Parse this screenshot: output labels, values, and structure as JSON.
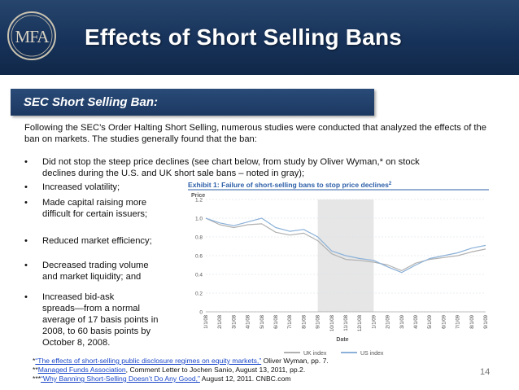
{
  "slide": {
    "title": "Effects of Short Selling Bans",
    "logo_text": "MFA",
    "section": "SEC Short Selling Ban:",
    "intro": "Following the SEC’s Order Halting Short Selling, numerous studies were conducted that analyzed the effects of the ban on markets.  The studies generally found that the ban:",
    "bullets": [
      {
        "marker": "•",
        "lines": [
          "Did not stop the steep price declines (see chart below, from study by Oliver Wyman,* on stock",
          "declines during the U.S. and UK short sale bans – noted in gray);"
        ]
      },
      {
        "marker": "•",
        "lines": [
          "Increased volatility;"
        ]
      },
      {
        "marker": "•",
        "lines": [
          "Made capital raising more",
          "difficult for certain issuers;"
        ]
      },
      {
        "marker": "•",
        "lines": [
          "Reduced market efficiency;"
        ]
      },
      {
        "marker": "•",
        "lines": [
          "Decreased trading volume",
          "and market liquidity; and"
        ]
      },
      {
        "marker": "•",
        "lines": [
          "Increased bid-ask",
          "spreads—from a normal",
          "average of 17 basis points in",
          "2008, to 60 basis points by",
          "October 8, 2008."
        ]
      }
    ],
    "footnotes": [
      {
        "prefix": "*",
        "link": "“The effects of short-selling public disclosure regimes on equity markets,”",
        "rest": " Oliver Wyman, pp. 7."
      },
      {
        "prefix": "**",
        "link": "Managed Funds Association",
        "rest": ", Comment Letter to Jochen Sanio, August 13, 2011, pp.2."
      },
      {
        "prefix": "***",
        "link": "“Why Banning Short-Selling Doesn’t Do Any Good,”",
        "rest": " August 12, 2011. CNBC.com"
      }
    ],
    "page_number": "14",
    "colors": {
      "header_dark": "#17325a",
      "exhibit_title": "#2b5ea8",
      "uk_series": "#b0b0b0",
      "us_series": "#8bb1d8",
      "ban_shading": "#e6e6e6",
      "link": "#1a46c8"
    }
  },
  "chart_data": {
    "type": "line",
    "title": "Exhibit 1: Failure of short-selling bans to stop price declines",
    "title_superscript": "2",
    "ylabel": "Price",
    "xlabel": "Date",
    "ylim": [
      0,
      1.2
    ],
    "yticks": [
      "0",
      "0.2",
      "0.4",
      "0.6",
      "0.8",
      "1.0",
      "1.2"
    ],
    "grid": true,
    "legend_position": "bottom-center",
    "categories": [
      "1/1/08",
      "2/1/08",
      "3/1/08",
      "4/1/08",
      "5/1/08",
      "6/1/08",
      "7/1/08",
      "8/1/08",
      "9/1/08",
      "10/1/08",
      "11/1/08",
      "12/1/08",
      "1/1/09",
      "2/1/09",
      "3/1/09",
      "4/1/09",
      "5/1/09",
      "6/1/09",
      "7/1/09",
      "8/1/09",
      "9/1/09"
    ],
    "shaded_region": {
      "from": "9/1/08",
      "to": "1/1/09"
    },
    "series": [
      {
        "name": "UK index",
        "color": "#b0b0b0",
        "values": [
          1.0,
          0.93,
          0.9,
          0.93,
          0.94,
          0.85,
          0.82,
          0.84,
          0.76,
          0.62,
          0.56,
          0.55,
          0.53,
          0.5,
          0.44,
          0.52,
          0.56,
          0.58,
          0.6,
          0.64,
          0.67
        ]
      },
      {
        "name": "US index",
        "color": "#8bb1d8",
        "values": [
          1.0,
          0.95,
          0.92,
          0.96,
          1.0,
          0.9,
          0.86,
          0.88,
          0.8,
          0.65,
          0.6,
          0.57,
          0.55,
          0.48,
          0.42,
          0.5,
          0.57,
          0.6,
          0.63,
          0.68,
          0.71
        ]
      }
    ]
  }
}
